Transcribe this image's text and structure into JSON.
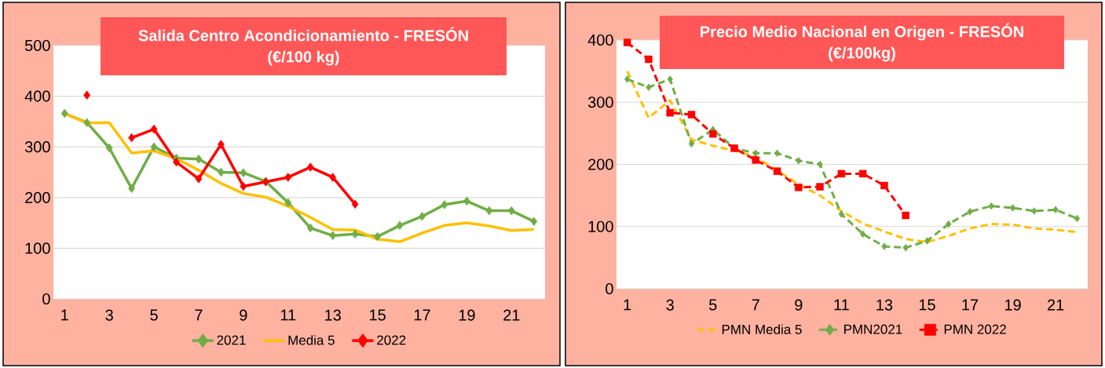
{
  "chart_data": [
    {
      "type": "line",
      "title": "Salida Centro Acondicionamiento - FRESÓN",
      "subtitle": "(€/100 kg)",
      "categories": [
        "1",
        null,
        "3",
        null,
        "5",
        null,
        "7",
        null,
        "9",
        null,
        "11",
        null,
        "13",
        null,
        "15",
        null,
        "17",
        null,
        "19",
        null,
        "21",
        null
      ],
      "ylim": [
        0,
        500
      ],
      "yticks": [
        0,
        100,
        200,
        300,
        400,
        500
      ],
      "grid": "y",
      "legend": "bottom",
      "series": [
        {
          "name": "2021",
          "color": "#70ad47",
          "marker": "diamond",
          "line_style": "solid",
          "values": [
            366,
            348,
            298,
            218,
            300,
            278,
            276,
            250,
            249,
            232,
            190,
            140,
            125,
            128,
            123,
            145,
            163,
            186,
            193,
            174,
            174,
            153
          ]
        },
        {
          "name": "Media 5",
          "color": "#ffc000",
          "marker": "none",
          "line_style": "solid",
          "values": [
            366,
            347,
            348,
            288,
            292,
            277,
            254,
            228,
            208,
            201,
            183,
            161,
            137,
            136,
            118,
            113,
            130,
            145,
            150,
            144,
            135,
            137
          ]
        },
        {
          "name": "2022",
          "color": "#ff0000",
          "marker": "diamond",
          "line_style": "solid",
          "values": [
            null,
            402,
            null,
            318,
            335,
            270,
            237,
            305,
            222,
            231,
            240,
            260,
            240,
            187,
            null,
            null,
            null,
            null,
            null,
            null,
            null,
            null
          ]
        }
      ]
    },
    {
      "type": "line",
      "title": "Precio Medio Nacional en Origen - FRESÓN",
      "subtitle": "(€/100kg)",
      "categories": [
        "1",
        null,
        "3",
        null,
        "5",
        null,
        "7",
        null,
        "9",
        null,
        "11",
        null,
        "13",
        null,
        "15",
        null,
        "17",
        null,
        "19",
        null,
        "21",
        null
      ],
      "ylim": [
        0,
        400
      ],
      "yticks": [
        0,
        100,
        200,
        300,
        400
      ],
      "grid": "y",
      "legend": "bottom",
      "series": [
        {
          "name": "PMN Media 5",
          "color": "#ffc000",
          "marker": "none",
          "line_style": "dashed",
          "values": [
            350,
            275,
            303,
            240,
            230,
            222,
            212,
            190,
            168,
            150,
            125,
            105,
            92,
            80,
            75,
            85,
            97,
            104,
            103,
            97,
            95,
            91
          ]
        },
        {
          "name": "PMN2021",
          "color": "#70ad47",
          "marker": "diamond",
          "line_style": "dashed",
          "values": [
            337,
            324,
            337,
            233,
            256,
            226,
            218,
            218,
            206,
            200,
            120,
            88,
            68,
            66,
            77,
            104,
            124,
            133,
            130,
            125,
            127,
            113
          ]
        },
        {
          "name": "PMN 2022",
          "color": "#ff0000",
          "marker": "square",
          "line_style": "dashed",
          "values": [
            396,
            369,
            283,
            280,
            249,
            226,
            207,
            189,
            163,
            164,
            185,
            185,
            166,
            118,
            null,
            null,
            null,
            null,
            null,
            null,
            null,
            null
          ]
        }
      ]
    }
  ]
}
